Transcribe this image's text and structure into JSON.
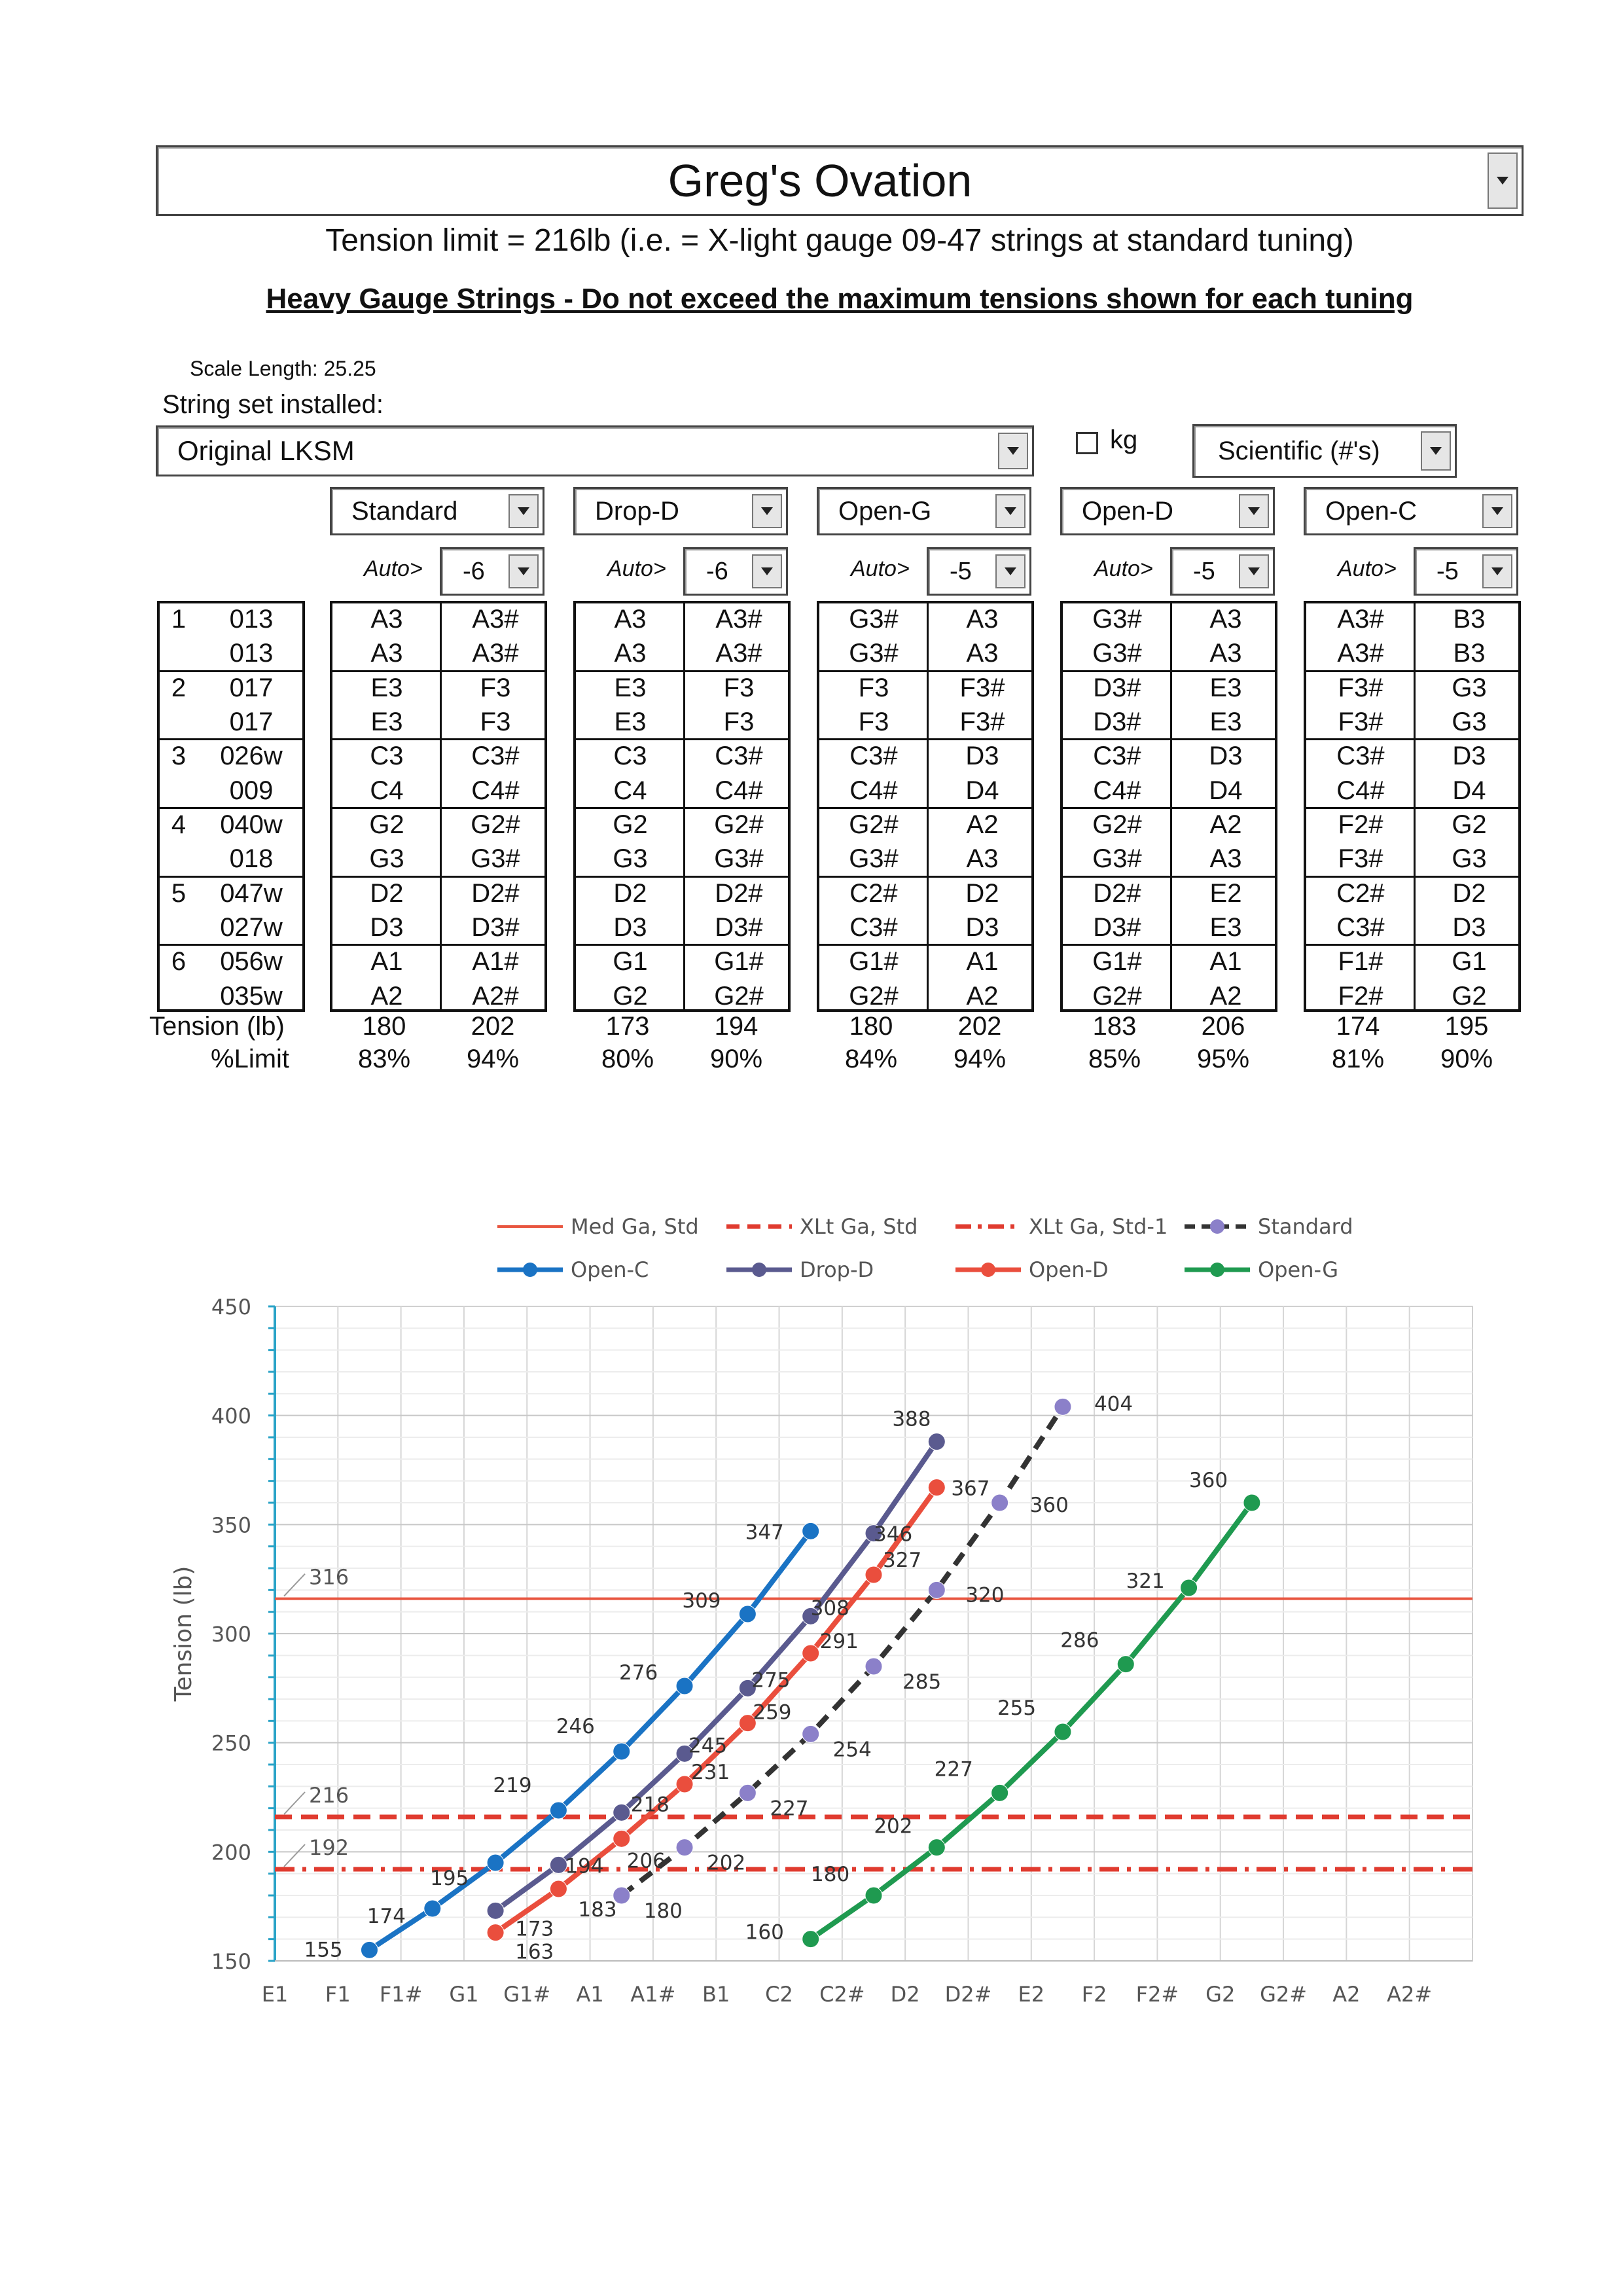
{
  "header": {
    "title": "Greg's Ovation",
    "tension_limit": "Tension limit = 216lb (i.e. = X-light gauge 09-47 strings at standard tuning)",
    "warning": "Heavy Gauge Strings - Do not exceed the maximum tensions shown for each tuning"
  },
  "settings": {
    "scale_length_label": "Scale Length:",
    "scale_length_value": "25.25",
    "string_set_label": "String set installed:",
    "string_set_value": "Original LKSM",
    "kg_label": "kg",
    "kg_checked": false,
    "notation_value": "Scientific (#'s)"
  },
  "strings": {
    "rows": [
      {
        "num": "1",
        "gauge": "013"
      },
      {
        "num": "",
        "gauge": "013"
      },
      {
        "num": "2",
        "gauge": "017"
      },
      {
        "num": "",
        "gauge": "017"
      },
      {
        "num": "3",
        "gauge": "026w"
      },
      {
        "num": "",
        "gauge": "009"
      },
      {
        "num": "4",
        "gauge": "040w"
      },
      {
        "num": "",
        "gauge": "018"
      },
      {
        "num": "5",
        "gauge": "047w"
      },
      {
        "num": "",
        "gauge": "027w"
      },
      {
        "num": "6",
        "gauge": "056w"
      },
      {
        "num": "",
        "gauge": "035w"
      }
    ],
    "tension_label": "Tension (lb)",
    "limit_label": "%Limit"
  },
  "tunings": [
    {
      "name": "Standard",
      "auto_label": "Auto>",
      "auto_value": "-6",
      "col_a": [
        "A3",
        "A3",
        "E3",
        "E3",
        "C3",
        "C4",
        "G2",
        "G3",
        "D2",
        "D3",
        "A1",
        "A2"
      ],
      "col_b": [
        "A3#",
        "A3#",
        "F3",
        "F3",
        "C3#",
        "C4#",
        "G2#",
        "G3#",
        "D2#",
        "D3#",
        "A1#",
        "A2#"
      ],
      "tension_a": "180",
      "tension_b": "202",
      "limit_a": "83%",
      "limit_b": "94%"
    },
    {
      "name": "Drop-D",
      "auto_label": "Auto>",
      "auto_value": "-6",
      "col_a": [
        "A3",
        "A3",
        "E3",
        "E3",
        "C3",
        "C4",
        "G2",
        "G3",
        "D2",
        "D3",
        "G1",
        "G2"
      ],
      "col_b": [
        "A3#",
        "A3#",
        "F3",
        "F3",
        "C3#",
        "C4#",
        "G2#",
        "G3#",
        "D2#",
        "D3#",
        "G1#",
        "G2#"
      ],
      "tension_a": "173",
      "tension_b": "194",
      "limit_a": "80%",
      "limit_b": "90%"
    },
    {
      "name": "Open-G",
      "auto_label": "Auto>",
      "auto_value": "-5",
      "col_a": [
        "G3#",
        "G3#",
        "F3",
        "F3",
        "C3#",
        "C4#",
        "G2#",
        "G3#",
        "C2#",
        "C3#",
        "G1#",
        "G2#"
      ],
      "col_b": [
        "A3",
        "A3",
        "F3#",
        "F3#",
        "D3",
        "D4",
        "A2",
        "A3",
        "D2",
        "D3",
        "A1",
        "A2"
      ],
      "tension_a": "180",
      "tension_b": "202",
      "limit_a": "84%",
      "limit_b": "94%"
    },
    {
      "name": "Open-D",
      "auto_label": "Auto>",
      "auto_value": "-5",
      "col_a": [
        "G3#",
        "G3#",
        "D3#",
        "D3#",
        "C3#",
        "C4#",
        "G2#",
        "G3#",
        "D2#",
        "D3#",
        "G1#",
        "G2#"
      ],
      "col_b": [
        "A3",
        "A3",
        "E3",
        "E3",
        "D3",
        "D4",
        "A2",
        "A3",
        "E2",
        "E3",
        "A1",
        "A2"
      ],
      "tension_a": "183",
      "tension_b": "206",
      "limit_a": "85%",
      "limit_b": "95%"
    },
    {
      "name": "Open-C",
      "auto_label": "Auto>",
      "auto_value": "-5",
      "col_a": [
        "A3#",
        "A3#",
        "F3#",
        "F3#",
        "C3#",
        "C4#",
        "F2#",
        "F3#",
        "C2#",
        "C3#",
        "F1#",
        "F2#"
      ],
      "col_b": [
        "B3",
        "B3",
        "G3",
        "G3",
        "D3",
        "D4",
        "G2",
        "G3",
        "D2",
        "D3",
        "G1",
        "G2"
      ],
      "tension_a": "174",
      "tension_b": "195",
      "limit_a": "81%",
      "limit_b": "90%"
    }
  ],
  "chart_data": {
    "type": "line",
    "ylabel": "Tension (lb)",
    "xlabel": "",
    "ylim": [
      150,
      450
    ],
    "y_ticks": [
      "150",
      "200",
      "250",
      "300",
      "350",
      "400",
      "450"
    ],
    "categories": [
      "E1",
      "F1",
      "F1#",
      "G1",
      "G1#",
      "A1",
      "A1#",
      "B1",
      "C2",
      "C2#",
      "D2",
      "D2#",
      "E2",
      "F2",
      "F2#",
      "G2",
      "G2#",
      "A2",
      "A2#"
    ],
    "grid": true,
    "legend": "top",
    "reference_lines": [
      {
        "name": "Med Ga, Std",
        "value": 316,
        "label": "316",
        "style": "solid",
        "color": "#e8553f"
      },
      {
        "name": "XLt Ga, Std",
        "value": 216,
        "label": "216",
        "style": "dash",
        "color": "#e03b2f"
      },
      {
        "name": "XLt Ga, Std-1",
        "value": 192,
        "label": "192",
        "style": "dashdot",
        "color": "#e03b2f"
      }
    ],
    "series": [
      {
        "name": "Standard",
        "color": "#8b80c9",
        "line_color": "#333333",
        "style": "dashed",
        "x": [
          "A1",
          "A1#",
          "B1",
          "C2",
          "C2#",
          "D2",
          "D2#",
          "E2"
        ],
        "values": [
          180,
          202,
          227,
          254,
          285,
          320,
          360,
          404
        ],
        "labels": [
          "180",
          "202",
          "227",
          "254",
          "285",
          "320",
          "360",
          "404"
        ]
      },
      {
        "name": "Open-C",
        "color": "#1a73c4",
        "line_color": "#1a73c4",
        "style": "solid",
        "x": [
          "F1",
          "F1#",
          "G1",
          "G1#",
          "A1",
          "A1#",
          "B1",
          "C2"
        ],
        "values": [
          155,
          174,
          195,
          219,
          246,
          276,
          309,
          347
        ],
        "labels": [
          "155",
          "174",
          "195",
          "219",
          "246",
          "276",
          "309",
          "347"
        ]
      },
      {
        "name": "Drop-D",
        "color": "#5a5a8f",
        "line_color": "#5a5a8f",
        "style": "solid",
        "x": [
          "G1",
          "G1#",
          "A1",
          "A1#",
          "B1",
          "C2",
          "C2#",
          "D2"
        ],
        "values": [
          173,
          194,
          218,
          245,
          275,
          308,
          346,
          388
        ],
        "labels": [
          "173",
          "194",
          "218",
          "245",
          "275",
          "308",
          "346",
          "388"
        ]
      },
      {
        "name": "Open-D",
        "color": "#ea4e3d",
        "line_color": "#ea4e3d",
        "style": "solid",
        "x": [
          "G1",
          "G1#",
          "A1",
          "A1#",
          "B1",
          "C2",
          "C2#",
          "D2"
        ],
        "values": [
          163,
          183,
          206,
          231,
          259,
          291,
          327,
          367
        ],
        "labels": [
          "163",
          "183",
          "206",
          "231",
          "259",
          "291",
          "327",
          "367"
        ]
      },
      {
        "name": "Open-G",
        "color": "#1f9a50",
        "line_color": "#1f9a50",
        "style": "solid",
        "x": [
          "C2",
          "C2#",
          "D2",
          "D2#",
          "E2",
          "F2",
          "F2#",
          "G2"
        ],
        "values": [
          160,
          180,
          202,
          227,
          255,
          286,
          321,
          360
        ],
        "labels": [
          "160",
          "180",
          "202",
          "227",
          "255",
          "286",
          "321",
          "360"
        ]
      }
    ]
  }
}
